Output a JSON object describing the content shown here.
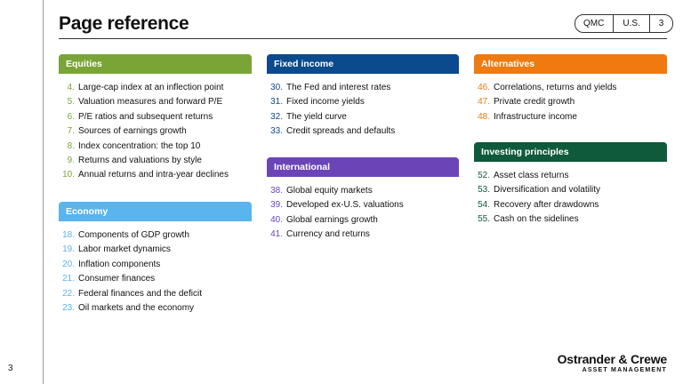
{
  "page": {
    "title": "Page reference",
    "slide_number": "3"
  },
  "tags": [
    "QMC",
    "U.S.",
    "3"
  ],
  "sections": {
    "equities": {
      "title": "Equities",
      "color": "#7aa536",
      "items": [
        {
          "num": "4.",
          "label": "Large-cap index at an inflection point"
        },
        {
          "num": "5.",
          "label": "Valuation measures and forward P/E"
        },
        {
          "num": "6.",
          "label": "P/E ratios and subsequent returns"
        },
        {
          "num": "7.",
          "label": "Sources of earnings growth"
        },
        {
          "num": "8.",
          "label": "Index concentration: the top 10"
        },
        {
          "num": "9.",
          "label": "Returns and valuations by style"
        },
        {
          "num": "10.",
          "label": "Annual returns and intra-year declines"
        }
      ]
    },
    "economy": {
      "title": "Economy",
      "color": "#5ab4ee",
      "items": [
        {
          "num": "18.",
          "label": "Components of GDP growth"
        },
        {
          "num": "19.",
          "label": "Labor market dynamics"
        },
        {
          "num": "20.",
          "label": "Inflation components"
        },
        {
          "num": "21.",
          "label": "Consumer finances"
        },
        {
          "num": "22.",
          "label": "Federal finances and the deficit"
        },
        {
          "num": "23.",
          "label": "Oil markets and the economy"
        }
      ]
    },
    "fixed_income": {
      "title": "Fixed income",
      "color": "#0b4a8c",
      "items": [
        {
          "num": "30.",
          "label": "The Fed and interest rates"
        },
        {
          "num": "31.",
          "label": "Fixed income yields"
        },
        {
          "num": "32.",
          "label": "The yield curve"
        },
        {
          "num": "33.",
          "label": "Credit spreads and defaults"
        }
      ]
    },
    "international": {
      "title": "International",
      "color": "#6b45b8",
      "items": [
        {
          "num": "38.",
          "label": "Global equity markets"
        },
        {
          "num": "39.",
          "label": "Developed ex-U.S. valuations"
        },
        {
          "num": "40.",
          "label": "Global earnings growth"
        },
        {
          "num": "41.",
          "label": "Currency and returns"
        }
      ]
    },
    "alternatives": {
      "title": "Alternatives",
      "color": "#ee7a10",
      "items": [
        {
          "num": "46.",
          "label": "Correlations, returns and yields"
        },
        {
          "num": "47.",
          "label": "Private credit growth"
        },
        {
          "num": "48.",
          "label": "Infrastructure income"
        }
      ]
    },
    "investing_principles": {
      "title": "Investing principles",
      "color": "#0f5a3a",
      "items": [
        {
          "num": "52.",
          "label": "Asset class returns"
        },
        {
          "num": "53.",
          "label": "Diversification and volatility"
        },
        {
          "num": "54.",
          "label": "Recovery after drawdowns"
        },
        {
          "num": "55.",
          "label": "Cash on the sidelines"
        }
      ]
    }
  },
  "logo": {
    "name": "Ostrander & Crewe",
    "subtitle": "ASSET MANAGEMENT"
  }
}
